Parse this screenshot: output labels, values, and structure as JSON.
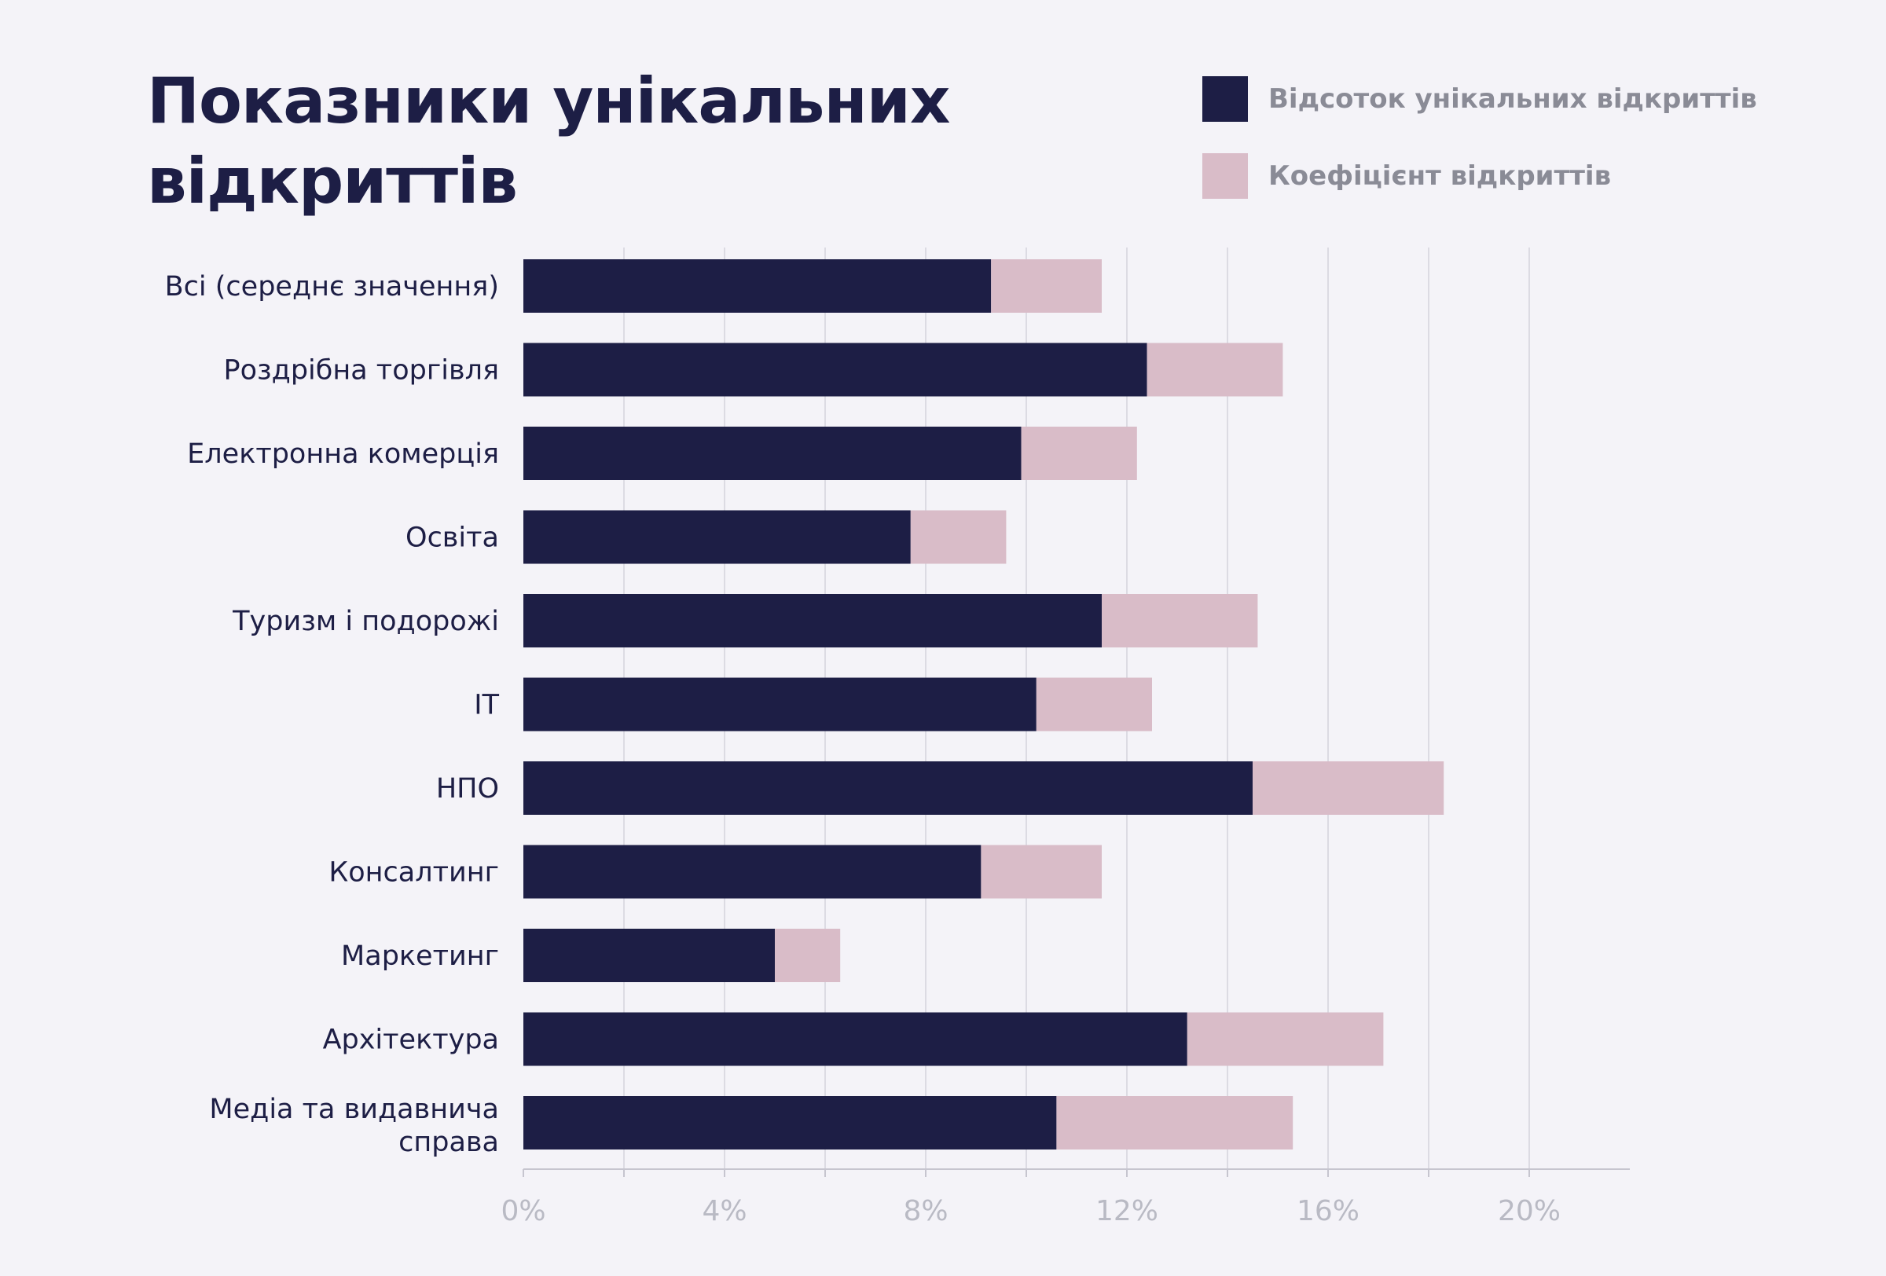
{
  "title": "Показники унікальних відкриттів",
  "colors": {
    "background": "#f4f3f8",
    "unique": "#1d1e45",
    "rate": "#d9bcc8",
    "grid": "#dcdbe3",
    "axis": "#c6c5cf",
    "tick_text": "#b9bac4",
    "category_text": "#1d1e45"
  },
  "chart_data": {
    "type": "bar",
    "orientation": "horizontal",
    "stacked": true,
    "title": "Показники унікальних відкриттів",
    "categories": [
      "Всі (середнє значення)",
      "Роздрібна торгівля",
      "Електронна комерція",
      "Освіта",
      "Туризм і подорожі",
      "IT",
      "НПО",
      "Консалтинг",
      "Маркетинг",
      "Архітектура",
      "Медіа та видавнича справа"
    ],
    "series": [
      {
        "name": "Відсоток унікальних відкриттів",
        "color": "#1d1e45",
        "values": [
          9.3,
          12.4,
          9.9,
          7.7,
          11.5,
          10.2,
          14.5,
          9.1,
          5.0,
          13.2,
          10.6
        ]
      },
      {
        "name": "Коефіцієнт відкриттів",
        "color": "#d9bcc8",
        "values": [
          2.2,
          2.7,
          2.3,
          1.9,
          3.1,
          2.3,
          3.8,
          2.4,
          1.3,
          3.9,
          4.7
        ]
      }
    ],
    "xlim": [
      0,
      22
    ],
    "x_ticks": [
      "0%",
      "4%",
      "8%",
      "12%",
      "16%",
      "20%"
    ],
    "x_tick_values": [
      0,
      4,
      8,
      12,
      16,
      20
    ],
    "grid": true,
    "grid_step": 2,
    "legend": "top-right"
  }
}
